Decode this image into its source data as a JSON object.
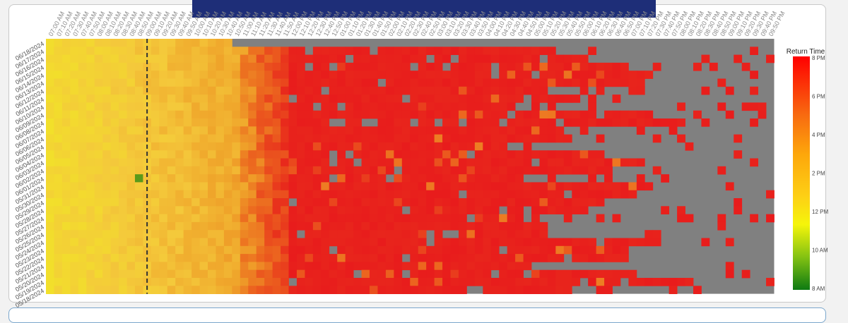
{
  "chart_data": {
    "type": "heatmap",
    "x_ticks": [
      "07:00 AM",
      "07:10 AM",
      "07:20 AM",
      "07:30 AM",
      "07:40 AM",
      "07:50 AM",
      "08:00 AM",
      "08:10 AM",
      "08:20 AM",
      "08:30 AM",
      "08:40 AM",
      "08:50 AM",
      "09:00 AM",
      "09:10 AM",
      "09:20 AM",
      "09:30 AM",
      "09:40 AM",
      "09:50 AM",
      "10:00 AM",
      "10:10 AM",
      "10:20 AM",
      "10:30 AM",
      "10:40 AM",
      "10:50 AM",
      "11:00 AM",
      "11:10 AM",
      "11:20 AM",
      "11:30 AM",
      "11:40 AM",
      "11:50 AM",
      "12:00 PM",
      "12:10 PM",
      "12:20 PM",
      "12:30 PM",
      "12:40 PM",
      "12:50 PM",
      "01:00 PM",
      "01:10 PM",
      "01:20 PM",
      "01:30 PM",
      "01:40 PM",
      "01:50 PM",
      "02:00 PM",
      "02:10 PM",
      "02:20 PM",
      "02:30 PM",
      "02:40 PM",
      "02:50 PM",
      "03:00 PM",
      "03:10 PM",
      "03:20 PM",
      "03:30 PM",
      "03:40 PM",
      "03:50 PM",
      "04:00 PM",
      "04:10 PM",
      "04:20 PM",
      "04:30 PM",
      "04:40 PM",
      "04:50 PM",
      "05:00 PM",
      "05:10 PM",
      "05:20 PM",
      "05:30 PM",
      "05:40 PM",
      "05:50 PM",
      "06:00 PM",
      "06:10 PM",
      "06:20 PM",
      "06:30 PM",
      "06:40 PM",
      "06:50 PM",
      "07:00 PM",
      "07:10 PM",
      "07:20 PM",
      "07:30 PM",
      "07:40 PM",
      "07:50 PM",
      "08:00 PM",
      "08:10 PM",
      "08:20 PM",
      "08:30 PM",
      "08:40 PM",
      "08:50 PM",
      "09:00 PM",
      "09:10 PM",
      "09:20 PM",
      "09:30 PM",
      "09:40 PM",
      "09:50 PM"
    ],
    "y_ticks": [
      "06/18/2024",
      "06/17/2024",
      "06/16/2024",
      "06/15/2024",
      "06/14/2024",
      "06/13/2024",
      "06/12/2024",
      "06/11/2024",
      "06/10/2024",
      "06/09/2024",
      "06/08/2024",
      "06/07/2024",
      "06/06/2024",
      "06/05/2024",
      "06/04/2024",
      "06/03/2024",
      "06/02/2024",
      "06/01/2024",
      "05/31/2024",
      "05/30/2024",
      "05/29/2024",
      "05/28/2024",
      "05/27/2024",
      "05/26/2024",
      "05/25/2024",
      "05/24/2024",
      "05/23/2024",
      "05/22/2024",
      "05/21/2024",
      "05/20/2024",
      "05/19/2024",
      "05/18/2024"
    ],
    "legend": {
      "title": "Return Time",
      "ticks": [
        "8 PM",
        "6 PM",
        "4 PM",
        "2 PM",
        "12 PM",
        "10 AM",
        "8 AM"
      ],
      "colors": [
        "#e81c1c",
        "#f86a10",
        "#fda70b",
        "#fdd015",
        "#f5f50a",
        "#83c212",
        "#0d8a12"
      ],
      "position": "right"
    },
    "marker_line": "09:00 AM",
    "missing_color": "#808080",
    "cell_colors": {
      "early": "#f4c93b",
      "mid": "#ef8a24",
      "late": "#e8201c"
    }
  }
}
